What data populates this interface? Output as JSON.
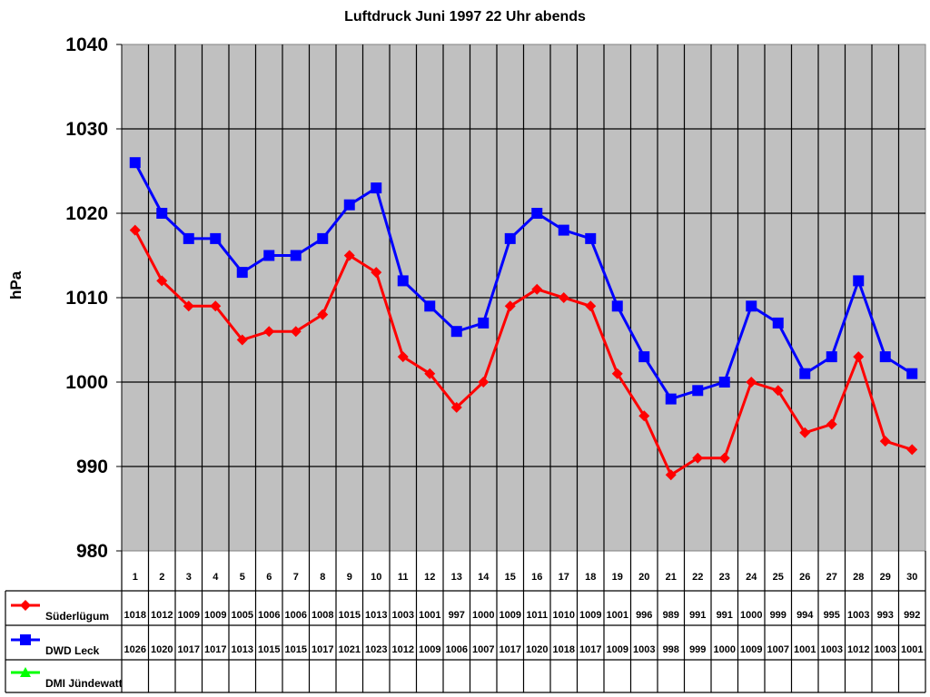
{
  "chart_data": {
    "type": "line",
    "title": "Luftdruck Juni 1997 22 Uhr abends",
    "xlabel": "",
    "ylabel": "hPa",
    "ylim": [
      980,
      1040
    ],
    "yticks": [
      980,
      990,
      1000,
      1010,
      1020,
      1030,
      1040
    ],
    "grid": true,
    "legend_position": "data-table-left",
    "categories": [
      "1",
      "2",
      "3",
      "4",
      "5",
      "6",
      "7",
      "8",
      "9",
      "10",
      "11",
      "12",
      "13",
      "14",
      "15",
      "16",
      "17",
      "18",
      "19",
      "20",
      "21",
      "22",
      "23",
      "24",
      "25",
      "26",
      "27",
      "28",
      "29",
      "30"
    ],
    "series": [
      {
        "name": "Süderlügum",
        "color": "#ff0000",
        "marker": "diamond",
        "values": [
          1018,
          1012,
          1009,
          1009,
          1005,
          1006,
          1006,
          1008,
          1015,
          1013,
          1003,
          1001,
          997,
          1000,
          1009,
          1011,
          1010,
          1009,
          1001,
          996,
          989,
          991,
          991,
          1000,
          999,
          994,
          995,
          1003,
          993,
          992
        ]
      },
      {
        "name": "DWD Leck",
        "color": "#0000ff",
        "marker": "square",
        "values": [
          1026,
          1020,
          1017,
          1017,
          1013,
          1015,
          1015,
          1017,
          1021,
          1023,
          1012,
          1009,
          1006,
          1007,
          1017,
          1020,
          1018,
          1017,
          1009,
          1003,
          998,
          999,
          1000,
          1009,
          1007,
          1001,
          1003,
          1012,
          1003,
          1001
        ]
      },
      {
        "name": "DMI Jündewatt",
        "color": "#00ff00",
        "marker": "triangle",
        "values": []
      }
    ],
    "plot_background": "#c0c0c0"
  }
}
